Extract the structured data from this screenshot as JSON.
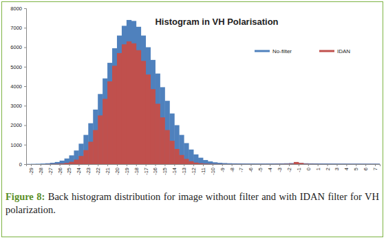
{
  "chart_data": {
    "type": "histogram",
    "title": "Histogram in VH Polarisation",
    "bins": [
      -29.5,
      -29,
      -28.5,
      -28,
      -27.5,
      -27,
      -26.5,
      -26,
      -25.5,
      -25,
      -24.5,
      -24,
      -23.5,
      -23,
      -22.5,
      -22,
      -21.5,
      -21,
      -20.5,
      -20,
      -19.5,
      -19,
      -18.5,
      -18,
      -17.5,
      -17,
      -16.5,
      -16,
      -15.5,
      -15,
      -14.5,
      -14,
      -13.5,
      -13,
      -12.5,
      -12,
      -11.5,
      -11,
      -10.5,
      -10,
      -9.5,
      -9,
      -8.5,
      -8,
      -7.5,
      -7,
      -6.5,
      -6,
      -5.5,
      -5,
      -4.5,
      -4,
      -3.5,
      -3,
      -2.5,
      -2,
      -1.5,
      -1,
      -0.5,
      0,
      0.5,
      1,
      1.5,
      2,
      2.5,
      3,
      3.5,
      4,
      4.5,
      5,
      5.5,
      6,
      6.5,
      7,
      7.5
    ],
    "series": [
      {
        "name": "No-filter",
        "color": "#4f81bd",
        "values": [
          10,
          15,
          20,
          30,
          45,
          70,
          110,
          180,
          290,
          450,
          700,
          1050,
          1500,
          2100,
          2800,
          3600,
          4400,
          5200,
          5950,
          6600,
          7100,
          7400,
          7350,
          7050,
          6600,
          6000,
          5350,
          4650,
          3950,
          3250,
          2600,
          2000,
          1500,
          1080,
          750,
          500,
          330,
          210,
          140,
          95,
          70,
          55,
          45,
          40,
          38,
          36,
          35,
          35,
          34,
          34,
          35,
          36,
          38,
          40,
          45,
          55,
          70,
          60,
          45,
          40,
          38,
          36,
          35,
          34,
          33,
          32,
          32,
          31,
          30,
          30,
          29,
          28,
          28,
          27
        ]
      },
      {
        "name": "IDAN",
        "color": "#c0504d",
        "values": [
          0,
          0,
          0,
          0,
          5,
          10,
          15,
          30,
          60,
          120,
          230,
          420,
          720,
          1150,
          1750,
          2500,
          3350,
          4250,
          5050,
          5700,
          6150,
          6300,
          6200,
          5850,
          5300,
          4600,
          3850,
          3100,
          2400,
          1750,
          1200,
          780,
          470,
          270,
          150,
          80,
          45,
          25,
          15,
          10,
          8,
          6,
          5,
          5,
          5,
          5,
          5,
          5,
          5,
          5,
          5,
          6,
          8,
          10,
          15,
          25,
          110,
          60,
          20,
          10,
          8,
          6,
          5,
          5,
          5,
          5,
          5,
          5,
          5,
          5,
          5,
          5,
          5,
          5
        ]
      }
    ],
    "xlim": [
      -29.5,
      7.5
    ],
    "xticks": [
      -29,
      -28,
      -27,
      -26,
      -25,
      -24,
      -23,
      -22,
      -21,
      -20,
      -19,
      -18,
      -17,
      -16,
      -15,
      -14,
      -13,
      -12,
      -11,
      -10,
      -9,
      -8,
      -7,
      -6,
      -5,
      -4,
      -3,
      -2,
      -1,
      0,
      1,
      2,
      3,
      4,
      5,
      6,
      7
    ],
    "ylim": [
      0,
      8000
    ],
    "yticks": [
      0,
      1000,
      2000,
      3000,
      4000,
      5000,
      6000,
      7000,
      8000
    ],
    "grid": false,
    "legend": "top-right"
  },
  "figure": {
    "label": "Figure 8:",
    "caption": "Back histogram distribution for image without filter and with IDAN filter for VH polarization."
  }
}
